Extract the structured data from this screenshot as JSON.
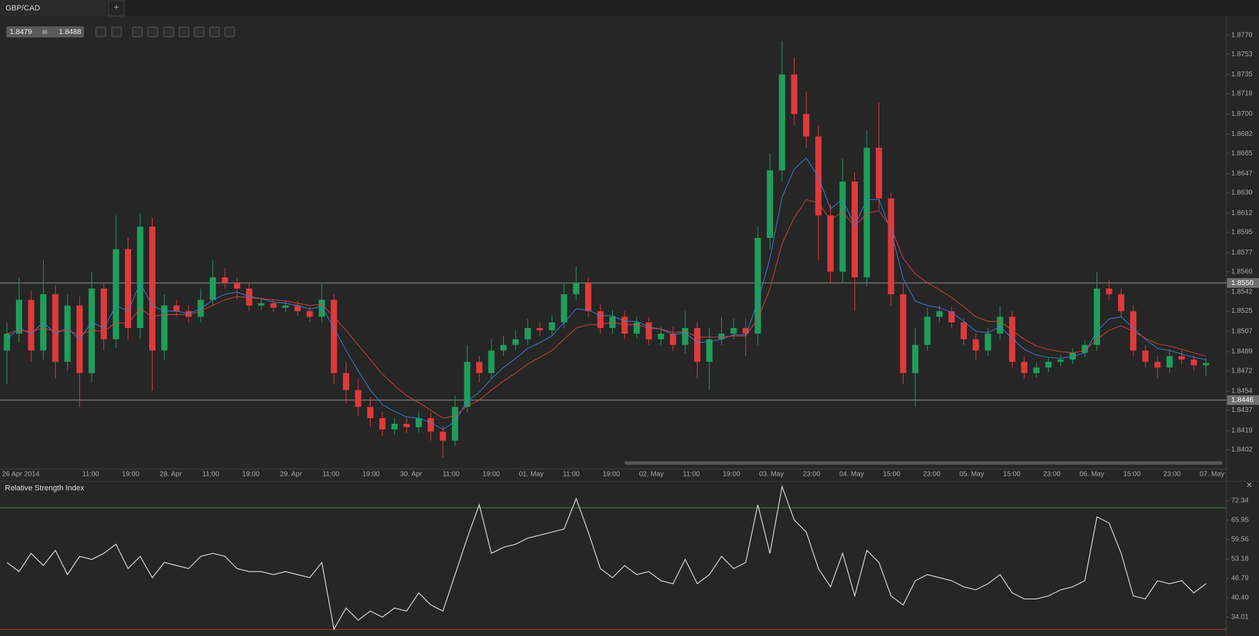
{
  "header": {
    "symbol": "GBP/CAD",
    "new_tab": "+",
    "bid": "1.8479",
    "ask": "1.8488",
    "close_icon": "✕"
  },
  "x_labels": [
    "26 Apr 2014",
    "11:00",
    "19:00",
    "28. Apr",
    "11:00",
    "19:00",
    "29. Apr",
    "11:00",
    "19:00",
    "30. Apr",
    "11:00",
    "19:00",
    "01. May",
    "11:00",
    "19:00",
    "02. May",
    "11:00",
    "19:00",
    "03. May",
    "23:00",
    "04. May",
    "15:00",
    "23:00",
    "05. May",
    "15:00",
    "23:00",
    "06. May",
    "15:00",
    "23:00",
    "07. May"
  ],
  "chart_data": [
    {
      "type": "candlestick",
      "up_color": "#1e9e5a",
      "down_color": "#e0393b",
      "ylim": [
        1.8385,
        1.8787
      ],
      "yticks": [
        {
          "value": 1.877,
          "label": "1.8770"
        },
        {
          "value": 1.8753,
          "label": "1.8753"
        },
        {
          "value": 1.8735,
          "label": "1.8735"
        },
        {
          "value": 1.8718,
          "label": "1.8718"
        },
        {
          "value": 1.87,
          "label": "1.8700"
        },
        {
          "value": 1.8682,
          "label": "1.8682"
        },
        {
          "value": 1.8665,
          "label": "1.8665"
        },
        {
          "value": 1.8647,
          "label": "1.8647"
        },
        {
          "value": 1.863,
          "label": "1.8630"
        },
        {
          "value": 1.8612,
          "label": "1.8612"
        },
        {
          "value": 1.8595,
          "label": "1.8595"
        },
        {
          "value": 1.8577,
          "label": "1.8577"
        },
        {
          "value": 1.856,
          "label": "1.8560"
        },
        {
          "value": 1.8542,
          "label": "1.8542"
        },
        {
          "value": 1.8525,
          "label": "1.8525"
        },
        {
          "value": 1.8507,
          "label": "1.8507"
        },
        {
          "value": 1.8489,
          "label": "1.8489"
        },
        {
          "value": 1.8472,
          "label": "1.8472"
        },
        {
          "value": 1.8454,
          "label": "1.8454"
        },
        {
          "value": 1.8437,
          "label": "1.8437"
        },
        {
          "value": 1.8419,
          "label": "1.8419"
        },
        {
          "value": 1.8402,
          "label": "1.8402"
        }
      ],
      "levels": [
        {
          "value": 1.855,
          "label": "1.8550"
        },
        {
          "value": 1.8446,
          "label": "1.8446"
        }
      ],
      "open": [
        1.849,
        1.8505,
        1.8535,
        1.849,
        1.854,
        1.848,
        1.853,
        1.847,
        1.8545,
        1.85,
        1.858,
        1.851,
        1.86,
        1.849,
        1.853,
        1.8525,
        1.852,
        1.8535,
        1.8555,
        1.855,
        1.8545,
        1.853,
        1.8532,
        1.8528,
        1.853,
        1.8525,
        1.852,
        1.8535,
        1.847,
        1.8455,
        1.844,
        1.843,
        1.842,
        1.8425,
        1.8422,
        1.843,
        1.8418,
        1.841,
        1.844,
        1.848,
        1.847,
        1.849,
        1.8495,
        1.85,
        1.851,
        1.8508,
        1.8515,
        1.854,
        1.855,
        1.8525,
        1.851,
        1.852,
        1.8505,
        1.8515,
        1.85,
        1.8505,
        1.8495,
        1.851,
        1.848,
        1.85,
        1.8505,
        1.851,
        1.8505,
        1.859,
        1.865,
        1.8735,
        1.87,
        1.868,
        1.861,
        1.856,
        1.864,
        1.8555,
        1.867,
        1.8625,
        1.854,
        1.847,
        1.8495,
        1.852,
        1.8525,
        1.8515,
        1.85,
        1.849,
        1.8505,
        1.852,
        1.848,
        1.847,
        1.8475,
        1.848,
        1.8482,
        1.8488,
        1.8495,
        1.8545,
        1.854,
        1.8525,
        1.849,
        1.848,
        1.8475,
        1.8485,
        1.8482,
        1.8477
      ],
      "high": [
        1.8515,
        1.8555,
        1.8543,
        1.857,
        1.8548,
        1.854,
        1.8538,
        1.856,
        1.855,
        1.861,
        1.859,
        1.8612,
        1.8608,
        1.854,
        1.8535,
        1.853,
        1.8545,
        1.857,
        1.8563,
        1.8555,
        1.855,
        1.8537,
        1.8536,
        1.8534,
        1.8534,
        1.8529,
        1.855,
        1.854,
        1.848,
        1.8465,
        1.8448,
        1.8436,
        1.843,
        1.843,
        1.8436,
        1.8435,
        1.8423,
        1.845,
        1.8495,
        1.8485,
        1.85,
        1.8503,
        1.8508,
        1.8518,
        1.8515,
        1.8521,
        1.855,
        1.8565,
        1.8555,
        1.8531,
        1.8526,
        1.8525,
        1.852,
        1.852,
        1.8511,
        1.8511,
        1.8525,
        1.8515,
        1.851,
        1.852,
        1.8518,
        1.8518,
        1.86,
        1.8665,
        1.8765,
        1.875,
        1.872,
        1.869,
        1.862,
        1.866,
        1.8648,
        1.8685,
        1.871,
        1.863,
        1.855,
        1.851,
        1.8528,
        1.853,
        1.8529,
        1.8519,
        1.8505,
        1.851,
        1.853,
        1.8525,
        1.8485,
        1.8479,
        1.8484,
        1.8486,
        1.8492,
        1.8499,
        1.856,
        1.8553,
        1.8545,
        1.853,
        1.8495,
        1.8485,
        1.8491,
        1.849,
        1.8486,
        1.8483
      ],
      "low": [
        1.846,
        1.8497,
        1.848,
        1.8482,
        1.8465,
        1.8472,
        1.844,
        1.8462,
        1.849,
        1.8492,
        1.85,
        1.85,
        1.8454,
        1.8482,
        1.852,
        1.8515,
        1.8515,
        1.853,
        1.8545,
        1.8535,
        1.8525,
        1.8526,
        1.8524,
        1.8524,
        1.8521,
        1.8516,
        1.8515,
        1.846,
        1.8443,
        1.8432,
        1.8422,
        1.8414,
        1.8415,
        1.8417,
        1.8417,
        1.841,
        1.8395,
        1.8405,
        1.8435,
        1.8462,
        1.8465,
        1.8485,
        1.849,
        1.8495,
        1.8503,
        1.8503,
        1.851,
        1.8535,
        1.852,
        1.8505,
        1.8505,
        1.85,
        1.8501,
        1.8495,
        1.8495,
        1.849,
        1.8487,
        1.8465,
        1.8455,
        1.8495,
        1.85,
        1.8485,
        1.8495,
        1.858,
        1.864,
        1.869,
        1.867,
        1.857,
        1.855,
        1.855,
        1.8525,
        1.8547,
        1.8615,
        1.853,
        1.846,
        1.844,
        1.849,
        1.8515,
        1.851,
        1.8495,
        1.8482,
        1.8485,
        1.85,
        1.8475,
        1.8465,
        1.8466,
        1.8471,
        1.8476,
        1.8478,
        1.8484,
        1.849,
        1.8535,
        1.852,
        1.8485,
        1.8475,
        1.8465,
        1.847,
        1.8478,
        1.8472,
        1.8467
      ],
      "close": [
        1.8505,
        1.8535,
        1.849,
        1.854,
        1.848,
        1.853,
        1.847,
        1.8545,
        1.85,
        1.858,
        1.851,
        1.86,
        1.849,
        1.853,
        1.8525,
        1.852,
        1.8535,
        1.8555,
        1.855,
        1.8545,
        1.853,
        1.8532,
        1.8528,
        1.853,
        1.8525,
        1.852,
        1.8535,
        1.847,
        1.8455,
        1.844,
        1.843,
        1.842,
        1.8425,
        1.8422,
        1.843,
        1.8418,
        1.841,
        1.844,
        1.848,
        1.847,
        1.849,
        1.8495,
        1.85,
        1.851,
        1.8508,
        1.8515,
        1.854,
        1.855,
        1.8525,
        1.851,
        1.852,
        1.8505,
        1.8515,
        1.85,
        1.8505,
        1.8495,
        1.851,
        1.848,
        1.85,
        1.8505,
        1.851,
        1.8505,
        1.859,
        1.865,
        1.8735,
        1.87,
        1.868,
        1.861,
        1.856,
        1.864,
        1.8555,
        1.867,
        1.8625,
        1.854,
        1.847,
        1.8495,
        1.852,
        1.8525,
        1.8515,
        1.85,
        1.849,
        1.8505,
        1.852,
        1.848,
        1.847,
        1.8475,
        1.848,
        1.8482,
        1.8488,
        1.8495,
        1.8545,
        1.854,
        1.8525,
        1.849,
        1.848,
        1.8475,
        1.8485,
        1.8482,
        1.8477,
        1.8479
      ],
      "overlays": [
        {
          "color": "#3f7fd4",
          "values": [
            1.85,
            1.851,
            1.8505,
            1.8515,
            1.8505,
            1.851,
            1.85,
            1.8515,
            1.851,
            1.853,
            1.8525,
            1.855,
            1.853,
            1.8525,
            1.8525,
            1.8523,
            1.8527,
            1.8535,
            1.854,
            1.8542,
            1.8538,
            1.8536,
            1.8533,
            1.8532,
            1.853,
            1.8527,
            1.8529,
            1.851,
            1.849,
            1.8472,
            1.8455,
            1.8442,
            1.8436,
            1.8431,
            1.843,
            1.8426,
            1.842,
            1.8427,
            1.8445,
            1.8453,
            1.8465,
            1.8475,
            1.8483,
            1.8492,
            1.8497,
            1.8503,
            1.8515,
            1.8527,
            1.8526,
            1.8521,
            1.8521,
            1.8516,
            1.8516,
            1.8511,
            1.8509,
            1.8504,
            1.8506,
            1.8497,
            1.8498,
            1.85,
            1.8504,
            1.8504,
            1.8533,
            1.8572,
            1.8626,
            1.8651,
            1.8661,
            1.8644,
            1.8616,
            1.8624,
            1.8601,
            1.8624,
            1.8624,
            1.8596,
            1.8554,
            1.8534,
            1.853,
            1.8528,
            1.8524,
            1.8516,
            1.8507,
            1.8506,
            1.8511,
            1.8501,
            1.8491,
            1.8486,
            1.8484,
            1.8483,
            1.8485,
            1.8488,
            1.8507,
            1.8518,
            1.852,
            1.851,
            1.85,
            1.8492,
            1.849,
            1.8487,
            1.8484,
            1.8482
          ]
        },
        {
          "color": "#d3423f",
          "values": [
            1.8505,
            1.8508,
            1.8507,
            1.851,
            1.8507,
            1.8508,
            1.8504,
            1.8508,
            1.8507,
            1.8515,
            1.8514,
            1.8527,
            1.852,
            1.8522,
            1.8522,
            1.8522,
            1.8525,
            1.853,
            1.8535,
            1.8538,
            1.8537,
            1.8536,
            1.8535,
            1.8534,
            1.8532,
            1.853,
            1.8531,
            1.852,
            1.8508,
            1.8495,
            1.8482,
            1.8469,
            1.8459,
            1.845,
            1.8444,
            1.8437,
            1.843,
            1.8432,
            1.8441,
            1.8446,
            1.8455,
            1.8463,
            1.847,
            1.8478,
            1.8484,
            1.849,
            1.85,
            1.851,
            1.8513,
            1.8513,
            1.8515,
            1.8513,
            1.8513,
            1.851,
            1.8509,
            1.8506,
            1.8507,
            1.8502,
            1.8502,
            1.8502,
            1.8503,
            1.8503,
            1.8518,
            1.8545,
            1.8585,
            1.8608,
            1.8624,
            1.8621,
            1.8606,
            1.8613,
            1.86,
            1.8612,
            1.8614,
            1.8599,
            1.8572,
            1.8558,
            1.855,
            1.8544,
            1.8537,
            1.8529,
            1.852,
            1.8516,
            1.8516,
            1.8508,
            1.85,
            1.8494,
            1.8491,
            1.8489,
            1.8488,
            1.849,
            1.85,
            1.8508,
            1.8512,
            1.8507,
            1.8501,
            1.8496,
            1.8494,
            1.8491,
            1.8488,
            1.8485
          ]
        }
      ]
    },
    {
      "type": "line",
      "title": "Relative Strength Index",
      "color": "#dddddd",
      "ylim": [
        27.8,
        78.7
      ],
      "yticks": [
        72.34,
        65.95,
        59.56,
        53.18,
        46.79,
        {
          "value": 40.4,
          "label": "40.40"
        },
        34.01
      ],
      "levels": [
        {
          "value": 70,
          "color": "#3c8a3c"
        },
        {
          "value": 30,
          "color": "#b23535"
        }
      ],
      "values": [
        52,
        49,
        55,
        51,
        56,
        48,
        54,
        53,
        55,
        58,
        50,
        54,
        47,
        52,
        51,
        50,
        54,
        55,
        54,
        50,
        49,
        49,
        48,
        49,
        48,
        47,
        52,
        30,
        37,
        33,
        36,
        34,
        37,
        36,
        42,
        38,
        36,
        48,
        60,
        71,
        55,
        57,
        58,
        60,
        61,
        62,
        63,
        73,
        62,
        50,
        47,
        51,
        48,
        49,
        46,
        45,
        53,
        45,
        48,
        54,
        50,
        52,
        71,
        55,
        77,
        66,
        62,
        50,
        44,
        55,
        41,
        56,
        52,
        41,
        38,
        46,
        48,
        47,
        46,
        44,
        43,
        45,
        48,
        42,
        40,
        40,
        41,
        43,
        44,
        46,
        67,
        65,
        55,
        41,
        40,
        46,
        45,
        46,
        42,
        45
      ]
    }
  ]
}
